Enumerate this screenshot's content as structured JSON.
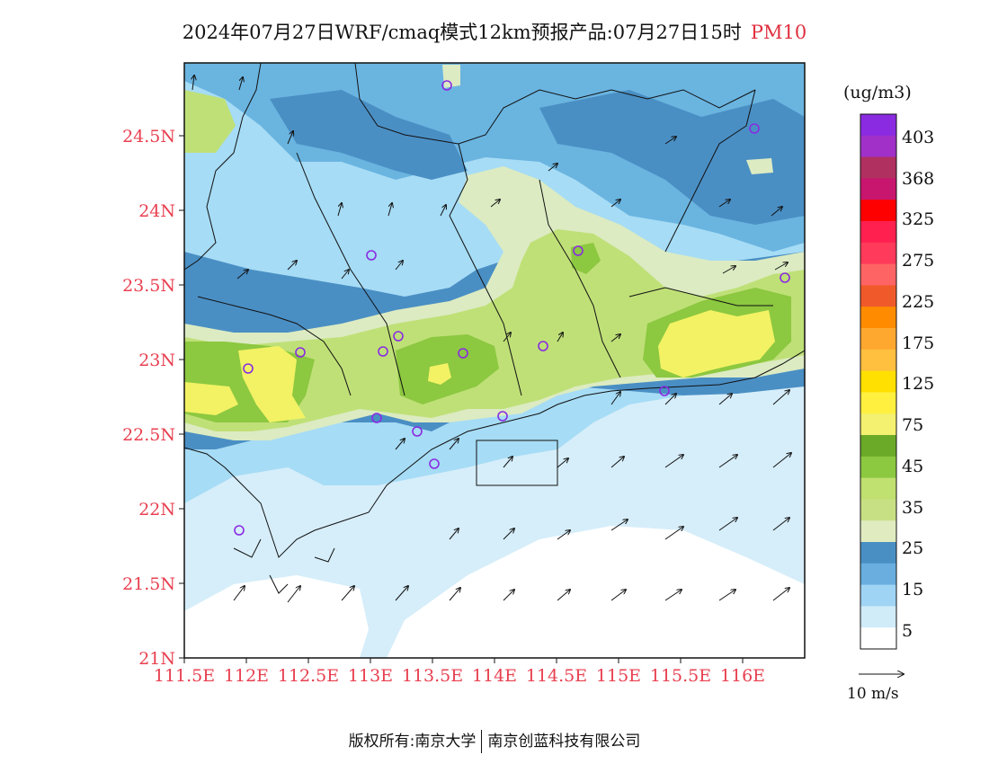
{
  "title": {
    "text": "2024年07月27日WRF/cmaq模式12km预报产品:07月27日15时",
    "pollutant": "PM10"
  },
  "map": {
    "lon_range": [
      111.5,
      116.5
    ],
    "lat_range": [
      21.0,
      25.0
    ],
    "lon_ticks": [
      "111.5E",
      "112E",
      "112.5E",
      "113E",
      "113.5E",
      "114E",
      "114.5E",
      "115E",
      "115.5E",
      "116E"
    ],
    "lat_ticks": [
      "21N",
      "21.5N",
      "22N",
      "22.5N",
      "23N",
      "23.5N",
      "24N",
      "24.5N"
    ]
  },
  "legend": {
    "units": "(ug/m3)",
    "labels": [
      "403",
      "368",
      "325",
      "275",
      "225",
      "175",
      "125",
      "75",
      "45",
      "35",
      "25",
      "15",
      "5"
    ],
    "colors": [
      "#8a2be2",
      "#a030c8",
      "#b03060",
      "#c8156e",
      "#ff0000",
      "#ff2050",
      "#ff3a5a",
      "#ff6464",
      "#f05a2a",
      "#ff8c00",
      "#ffa830",
      "#ffc040",
      "#ffe000",
      "#fff040",
      "#f4f070",
      "#6aaa28",
      "#8cc840",
      "#c0e070",
      "#c8e084",
      "#e0ecc0",
      "#4a8fc4",
      "#6aaee0",
      "#a0d4f4",
      "#d0ecf8",
      "#ffffff"
    ]
  },
  "wind_reference": "10 m/s",
  "footer": {
    "left": "版权所有:南京大学",
    "right": "南京创蓝科技有限公司"
  },
  "colors": {
    "c5": "#d6eefa",
    "c10": "#a6dcf5",
    "c15": "#6ab4e0",
    "c20": "#4a8fc4",
    "c25": "#dcebc2",
    "c35": "#bfe077",
    "c45": "#8cc840",
    "c75": "#f2f264",
    "label_red": "#e84050",
    "station": "#8a2be2"
  }
}
